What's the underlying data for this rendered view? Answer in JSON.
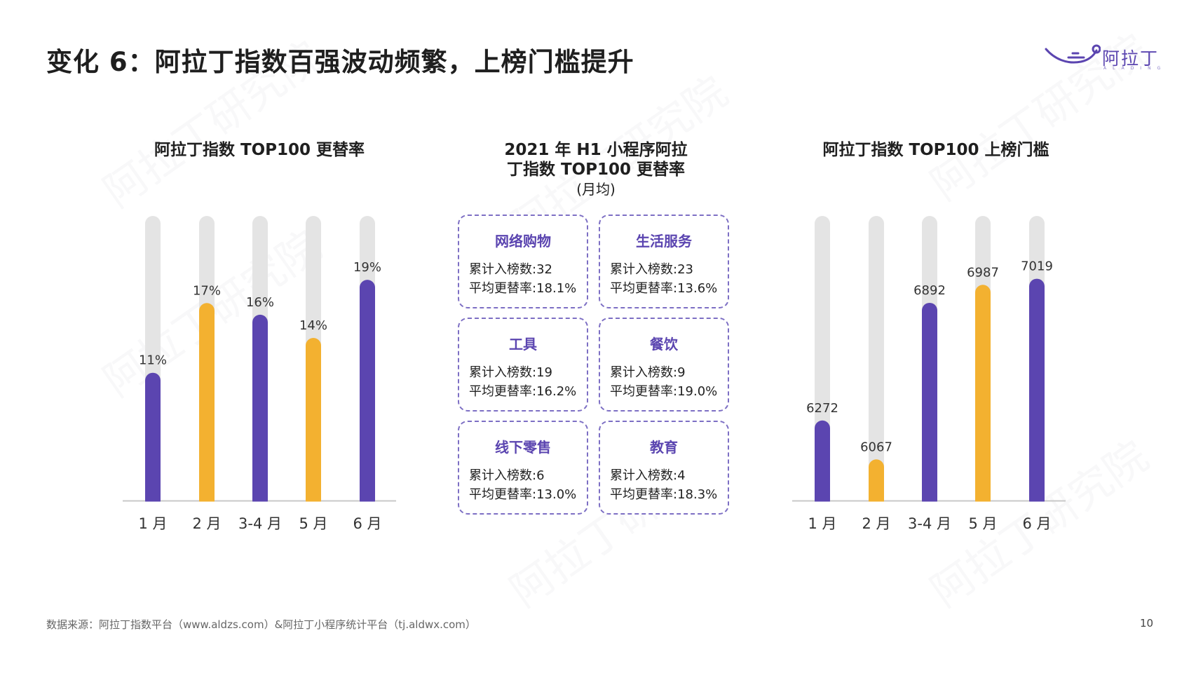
{
  "slide": {
    "title": "变化 6：阿拉丁指数百强波动频繁，上榜门槛提升",
    "logo_text": "阿拉丁",
    "logo_sub": "ALADING",
    "footer_source": "数据来源：阿拉丁指数平台（www.aldzs.com）&阿拉丁小程序统计平台（tj.aldwx.com）",
    "page_number": "10",
    "watermark_text": "阿拉丁研究院"
  },
  "colors": {
    "purple": "#5b45b0",
    "orange": "#f3b130",
    "track": "#e4e4e4",
    "axis": "#c8c8c8"
  },
  "middle": {
    "title_line1": "2021 年 H1 小程序阿拉",
    "title_line2": "丁指数 TOP100 更替率",
    "title_line3": "(月均)",
    "cards": [
      {
        "name": "网络购物",
        "count": "累计入榜数:32",
        "rate": "平均更替率:18.1%"
      },
      {
        "name": "生活服务",
        "count": "累计入榜数:23",
        "rate": "平均更替率:13.6%"
      },
      {
        "name": "工具",
        "count": "累计入榜数:19",
        "rate": "平均更替率:16.2%"
      },
      {
        "name": "餐饮",
        "count": "累计入榜数:9",
        "rate": "平均更替率:19.0%"
      },
      {
        "name": "线下零售",
        "count": "累计入榜数:6",
        "rate": "平均更替率:13.0%"
      },
      {
        "name": "教育",
        "count": "累计入榜数:4",
        "rate": "平均更替率:18.3%"
      }
    ]
  },
  "chart_data": [
    {
      "type": "bar",
      "title": "阿拉丁指数 TOP100 更替率",
      "categories": [
        "1 月",
        "2 月",
        "3-4 月",
        "5 月",
        "6 月"
      ],
      "values": [
        11,
        17,
        16,
        14,
        19
      ],
      "data_labels": [
        "11%",
        "17%",
        "16%",
        "14%",
        "19%"
      ],
      "bar_colors": [
        "purple",
        "orange",
        "purple",
        "orange",
        "purple"
      ],
      "ylim": [
        0,
        24.5
      ]
    },
    {
      "type": "bar",
      "title": "阿拉丁指数 TOP100 上榜门槛",
      "categories": [
        "1 月",
        "2 月",
        "3-4 月",
        "5 月",
        "6 月"
      ],
      "values": [
        6272,
        6067,
        6892,
        6987,
        7019
      ],
      "data_labels": [
        "6272",
        "6067",
        "6892",
        "6987",
        "7019"
      ],
      "bar_colors": [
        "purple",
        "orange",
        "purple",
        "orange",
        "purple"
      ],
      "ylim": [
        5850,
        7350
      ]
    }
  ]
}
